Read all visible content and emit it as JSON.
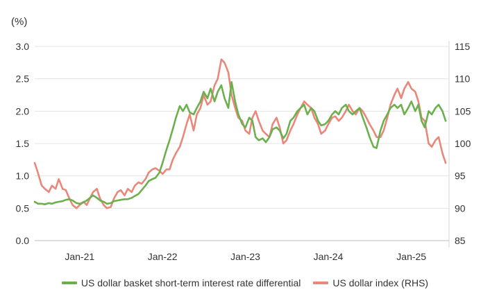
{
  "chart_data": {
    "type": "line",
    "unit_label": "(%)",
    "x_tick_labels": [
      "Jan-21",
      "Jan-22",
      "Jan-23",
      "Jan-24",
      "Jan-25"
    ],
    "x_range": [
      "2020-07",
      "2025-06"
    ],
    "left_axis": {
      "min": 0.0,
      "max": 3.0,
      "ticks": [
        "0.0",
        "0.5",
        "1.0",
        "1.5",
        "2.0",
        "2.5",
        "3.0"
      ]
    },
    "right_axis": {
      "min": 85,
      "max": 115,
      "ticks": [
        "85",
        "90",
        "95",
        "100",
        "105",
        "110",
        "115"
      ]
    },
    "grid": "horizontal",
    "legend_position": "bottom",
    "series": [
      {
        "name": "US dollar basket short-term interest rate differential",
        "axis": "left",
        "color": "#6ab04c",
        "points": [
          [
            "2020-07-01",
            0.6
          ],
          [
            "2020-07-15",
            0.57
          ],
          [
            "2020-08-01",
            0.57
          ],
          [
            "2020-08-15",
            0.56
          ],
          [
            "2020-09-01",
            0.58
          ],
          [
            "2020-09-15",
            0.57
          ],
          [
            "2020-10-01",
            0.59
          ],
          [
            "2020-10-15",
            0.6
          ],
          [
            "2020-11-01",
            0.61
          ],
          [
            "2020-11-15",
            0.63
          ],
          [
            "2020-12-01",
            0.64
          ],
          [
            "2020-12-15",
            0.62
          ],
          [
            "2021-01-01",
            0.58
          ],
          [
            "2021-01-15",
            0.57
          ],
          [
            "2021-02-01",
            0.59
          ],
          [
            "2021-02-15",
            0.62
          ],
          [
            "2021-03-01",
            0.66
          ],
          [
            "2021-03-15",
            0.7
          ],
          [
            "2021-04-01",
            0.66
          ],
          [
            "2021-04-15",
            0.62
          ],
          [
            "2021-05-01",
            0.6
          ],
          [
            "2021-05-15",
            0.57
          ],
          [
            "2021-06-01",
            0.58
          ],
          [
            "2021-06-15",
            0.61
          ],
          [
            "2021-07-01",
            0.62
          ],
          [
            "2021-07-15",
            0.63
          ],
          [
            "2021-08-01",
            0.64
          ],
          [
            "2021-08-15",
            0.64
          ],
          [
            "2021-09-01",
            0.66
          ],
          [
            "2021-09-15",
            0.69
          ],
          [
            "2021-10-01",
            0.72
          ],
          [
            "2021-10-15",
            0.78
          ],
          [
            "2021-11-01",
            0.85
          ],
          [
            "2021-11-15",
            0.92
          ],
          [
            "2021-12-01",
            0.95
          ],
          [
            "2021-12-15",
            0.97
          ],
          [
            "2022-01-01",
            1.05
          ],
          [
            "2022-01-15",
            1.2
          ],
          [
            "2022-02-01",
            1.4
          ],
          [
            "2022-02-15",
            1.55
          ],
          [
            "2022-03-01",
            1.72
          ],
          [
            "2022-03-15",
            1.9
          ],
          [
            "2022-04-01",
            2.08
          ],
          [
            "2022-04-15",
            2.0
          ],
          [
            "2022-05-01",
            2.1
          ],
          [
            "2022-05-15",
            1.98
          ],
          [
            "2022-06-01",
            1.95
          ],
          [
            "2022-06-15",
            2.05
          ],
          [
            "2022-07-01",
            2.15
          ],
          [
            "2022-07-15",
            2.3
          ],
          [
            "2022-08-01",
            2.2
          ],
          [
            "2022-08-15",
            2.35
          ],
          [
            "2022-09-01",
            2.15
          ],
          [
            "2022-09-15",
            2.3
          ],
          [
            "2022-10-01",
            2.4
          ],
          [
            "2022-10-15",
            2.2
          ],
          [
            "2022-11-01",
            2.05
          ],
          [
            "2022-11-15",
            2.45
          ],
          [
            "2022-12-01",
            2.15
          ],
          [
            "2022-12-15",
            1.95
          ],
          [
            "2023-01-01",
            1.8
          ],
          [
            "2023-01-15",
            1.75
          ],
          [
            "2023-02-01",
            1.9
          ],
          [
            "2023-02-15",
            1.85
          ],
          [
            "2023-03-01",
            1.6
          ],
          [
            "2023-03-15",
            1.55
          ],
          [
            "2023-04-01",
            1.58
          ],
          [
            "2023-04-15",
            1.52
          ],
          [
            "2023-05-01",
            1.6
          ],
          [
            "2023-05-15",
            1.72
          ],
          [
            "2023-06-01",
            1.75
          ],
          [
            "2023-06-15",
            1.7
          ],
          [
            "2023-07-01",
            1.58
          ],
          [
            "2023-07-15",
            1.65
          ],
          [
            "2023-08-01",
            1.85
          ],
          [
            "2023-08-15",
            1.9
          ],
          [
            "2023-09-01",
            2.0
          ],
          [
            "2023-09-15",
            2.05
          ],
          [
            "2023-10-01",
            2.1
          ],
          [
            "2023-10-15",
            1.95
          ],
          [
            "2023-11-01",
            2.05
          ],
          [
            "2023-11-15",
            2.0
          ],
          [
            "2023-12-01",
            1.85
          ],
          [
            "2023-12-15",
            1.78
          ],
          [
            "2024-01-01",
            1.8
          ],
          [
            "2024-01-15",
            1.85
          ],
          [
            "2024-02-01",
            1.95
          ],
          [
            "2024-02-15",
            2.0
          ],
          [
            "2024-03-01",
            1.95
          ],
          [
            "2024-03-15",
            2.05
          ],
          [
            "2024-04-01",
            2.1
          ],
          [
            "2024-04-15",
            2.0
          ],
          [
            "2024-05-01",
            1.95
          ],
          [
            "2024-05-15",
            2.0
          ],
          [
            "2024-06-01",
            2.05
          ],
          [
            "2024-06-15",
            1.9
          ],
          [
            "2024-07-01",
            1.75
          ],
          [
            "2024-07-15",
            1.6
          ],
          [
            "2024-08-01",
            1.45
          ],
          [
            "2024-08-15",
            1.43
          ],
          [
            "2024-09-01",
            1.7
          ],
          [
            "2024-09-15",
            1.85
          ],
          [
            "2024-10-01",
            1.95
          ],
          [
            "2024-10-15",
            2.05
          ],
          [
            "2024-11-01",
            2.1
          ],
          [
            "2024-11-15",
            2.05
          ],
          [
            "2024-12-01",
            2.1
          ],
          [
            "2024-12-15",
            1.95
          ],
          [
            "2025-01-01",
            2.05
          ],
          [
            "2025-01-15",
            2.15
          ],
          [
            "2025-02-01",
            2.0
          ],
          [
            "2025-02-15",
            2.1
          ],
          [
            "2025-03-01",
            1.85
          ],
          [
            "2025-03-15",
            1.75
          ],
          [
            "2025-04-01",
            2.0
          ],
          [
            "2025-04-15",
            1.95
          ],
          [
            "2025-05-01",
            2.05
          ],
          [
            "2025-05-15",
            2.1
          ],
          [
            "2025-06-01",
            2.0
          ],
          [
            "2025-06-15",
            1.85
          ]
        ]
      },
      {
        "name": "US dollar index (RHS)",
        "axis": "right",
        "color": "#e8877a",
        "points": [
          [
            "2020-07-01",
            97.0
          ],
          [
            "2020-07-15",
            95.5
          ],
          [
            "2020-08-01",
            93.5
          ],
          [
            "2020-08-15",
            93.0
          ],
          [
            "2020-09-01",
            92.5
          ],
          [
            "2020-09-15",
            93.5
          ],
          [
            "2020-10-01",
            93.0
          ],
          [
            "2020-10-15",
            94.5
          ],
          [
            "2020-11-01",
            93.0
          ],
          [
            "2020-11-15",
            92.8
          ],
          [
            "2020-12-01",
            91.5
          ],
          [
            "2020-12-15",
            90.5
          ],
          [
            "2021-01-01",
            90.0
          ],
          [
            "2021-01-15",
            90.5
          ],
          [
            "2021-02-01",
            91.0
          ],
          [
            "2021-02-15",
            90.5
          ],
          [
            "2021-03-01",
            91.5
          ],
          [
            "2021-03-15",
            92.5
          ],
          [
            "2021-04-01",
            93.0
          ],
          [
            "2021-04-15",
            91.5
          ],
          [
            "2021-05-01",
            90.5
          ],
          [
            "2021-05-15",
            90.0
          ],
          [
            "2021-06-01",
            90.2
          ],
          [
            "2021-06-15",
            91.5
          ],
          [
            "2021-07-01",
            92.5
          ],
          [
            "2021-07-15",
            92.8
          ],
          [
            "2021-08-01",
            92.0
          ],
          [
            "2021-08-15",
            93.0
          ],
          [
            "2021-09-01",
            92.5
          ],
          [
            "2021-09-15",
            93.5
          ],
          [
            "2021-10-01",
            94.0
          ],
          [
            "2021-10-15",
            93.8
          ],
          [
            "2021-11-01",
            94.5
          ],
          [
            "2021-11-15",
            95.5
          ],
          [
            "2021-12-01",
            96.0
          ],
          [
            "2021-12-15",
            96.2
          ],
          [
            "2022-01-01",
            95.8
          ],
          [
            "2022-01-15",
            95.3
          ],
          [
            "2022-02-01",
            96.0
          ],
          [
            "2022-02-15",
            96.0
          ],
          [
            "2022-03-01",
            97.5
          ],
          [
            "2022-03-15",
            98.5
          ],
          [
            "2022-04-01",
            99.5
          ],
          [
            "2022-04-15",
            101.0
          ],
          [
            "2022-05-01",
            103.0
          ],
          [
            "2022-05-15",
            104.5
          ],
          [
            "2022-06-01",
            102.0
          ],
          [
            "2022-06-15",
            104.5
          ],
          [
            "2022-07-01",
            105.5
          ],
          [
            "2022-07-15",
            107.5
          ],
          [
            "2022-08-01",
            106.0
          ],
          [
            "2022-08-15",
            106.5
          ],
          [
            "2022-09-01",
            109.0
          ],
          [
            "2022-09-15",
            110.0
          ],
          [
            "2022-10-01",
            113.0
          ],
          [
            "2022-10-15",
            112.5
          ],
          [
            "2022-11-01",
            111.0
          ],
          [
            "2022-11-15",
            107.5
          ],
          [
            "2022-12-01",
            105.5
          ],
          [
            "2022-12-15",
            104.0
          ],
          [
            "2023-01-01",
            103.5
          ],
          [
            "2023-01-15",
            102.0
          ],
          [
            "2023-02-01",
            101.5
          ],
          [
            "2023-02-15",
            104.0
          ],
          [
            "2023-03-01",
            105.0
          ],
          [
            "2023-03-15",
            103.5
          ],
          [
            "2023-04-01",
            102.0
          ],
          [
            "2023-04-15",
            101.5
          ],
          [
            "2023-05-01",
            101.0
          ],
          [
            "2023-05-15",
            103.0
          ],
          [
            "2023-06-01",
            104.0
          ],
          [
            "2023-06-15",
            102.5
          ],
          [
            "2023-07-01",
            100.0
          ],
          [
            "2023-07-15",
            100.5
          ],
          [
            "2023-08-01",
            102.0
          ],
          [
            "2023-08-15",
            103.0
          ],
          [
            "2023-09-01",
            104.5
          ],
          [
            "2023-09-15",
            105.5
          ],
          [
            "2023-10-01",
            106.5
          ],
          [
            "2023-10-15",
            106.0
          ],
          [
            "2023-11-01",
            105.5
          ],
          [
            "2023-11-15",
            104.0
          ],
          [
            "2023-12-01",
            103.0
          ],
          [
            "2023-12-15",
            101.5
          ],
          [
            "2024-01-01",
            102.0
          ],
          [
            "2024-01-15",
            103.0
          ],
          [
            "2024-02-01",
            104.0
          ],
          [
            "2024-02-15",
            104.2
          ],
          [
            "2024-03-01",
            103.5
          ],
          [
            "2024-03-15",
            104.0
          ],
          [
            "2024-04-01",
            105.0
          ],
          [
            "2024-04-15",
            106.0
          ],
          [
            "2024-05-01",
            105.0
          ],
          [
            "2024-05-15",
            104.5
          ],
          [
            "2024-06-01",
            105.5
          ],
          [
            "2024-06-15",
            105.0
          ],
          [
            "2024-07-01",
            104.0
          ],
          [
            "2024-07-15",
            103.0
          ],
          [
            "2024-08-01",
            102.0
          ],
          [
            "2024-08-15",
            101.0
          ],
          [
            "2024-09-01",
            101.0
          ],
          [
            "2024-09-15",
            102.0
          ],
          [
            "2024-10-01",
            104.0
          ],
          [
            "2024-10-15",
            106.0
          ],
          [
            "2024-11-01",
            107.5
          ],
          [
            "2024-11-15",
            108.5
          ],
          [
            "2024-12-01",
            107.0
          ],
          [
            "2024-12-15",
            108.5
          ],
          [
            "2025-01-01",
            109.5
          ],
          [
            "2025-01-15",
            108.5
          ],
          [
            "2025-02-01",
            108.0
          ],
          [
            "2025-02-15",
            106.5
          ],
          [
            "2025-03-01",
            104.0
          ],
          [
            "2025-03-15",
            103.5
          ],
          [
            "2025-04-01",
            100.0
          ],
          [
            "2025-04-15",
            99.5
          ],
          [
            "2025-05-01",
            100.5
          ],
          [
            "2025-05-15",
            101.0
          ],
          [
            "2025-06-01",
            98.5
          ],
          [
            "2025-06-15",
            97.0
          ]
        ]
      }
    ]
  }
}
